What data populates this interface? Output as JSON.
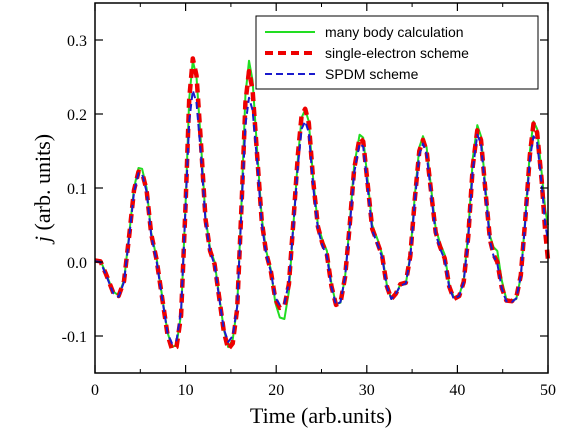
{
  "chart_data": {
    "type": "line",
    "xlabel": "Time (arb.units)",
    "ylabel_italic": "j",
    "ylabel_rest": " (arb. units)",
    "xlim": [
      0,
      50
    ],
    "ylim": [
      -0.15,
      0.35
    ],
    "xticks": [
      0,
      10,
      20,
      30,
      40,
      50
    ],
    "xtick_labels": [
      "0",
      "10",
      "20",
      "30",
      "40",
      "50"
    ],
    "yticks": [
      -0.1,
      0.0,
      0.1,
      0.2,
      0.3
    ],
    "ytick_labels": [
      "-0.1",
      "0.0",
      "0.1",
      "0.2",
      "0.3"
    ],
    "grid": false,
    "legend_position": "top-right",
    "series": [
      {
        "name": "many body calculation",
        "color": "#22dd22",
        "style": "solid",
        "points": [
          [
            0,
            0.003
          ],
          [
            0.6,
            0.002
          ],
          [
            1.2,
            -0.015
          ],
          [
            2.0,
            -0.04
          ],
          [
            2.6,
            -0.045
          ],
          [
            3.2,
            -0.025
          ],
          [
            3.8,
            0.04
          ],
          [
            4.3,
            0.1
          ],
          [
            4.8,
            0.127
          ],
          [
            5.2,
            0.126
          ],
          [
            5.7,
            0.1
          ],
          [
            6.2,
            0.04
          ],
          [
            6.8,
            0.005
          ],
          [
            7.4,
            -0.045
          ],
          [
            8.0,
            -0.095
          ],
          [
            8.5,
            -0.115
          ],
          [
            9.0,
            -0.112
          ],
          [
            9.5,
            -0.07
          ],
          [
            10.0,
            0.08
          ],
          [
            10.4,
            0.22
          ],
          [
            10.8,
            0.272
          ],
          [
            11.2,
            0.25
          ],
          [
            11.7,
            0.16
          ],
          [
            12.2,
            0.06
          ],
          [
            12.7,
            0.018
          ],
          [
            13.2,
            0.0
          ],
          [
            13.7,
            -0.045
          ],
          [
            14.2,
            -0.09
          ],
          [
            14.7,
            -0.115
          ],
          [
            15.2,
            -0.105
          ],
          [
            15.7,
            -0.06
          ],
          [
            16.2,
            0.09
          ],
          [
            16.6,
            0.225
          ],
          [
            17.0,
            0.272
          ],
          [
            17.4,
            0.245
          ],
          [
            17.9,
            0.15
          ],
          [
            18.4,
            0.06
          ],
          [
            18.9,
            0.015
          ],
          [
            19.4,
            -0.01
          ],
          [
            19.9,
            -0.055
          ],
          [
            20.4,
            -0.075
          ],
          [
            20.9,
            -0.077
          ],
          [
            21.4,
            -0.04
          ],
          [
            21.9,
            0.05
          ],
          [
            22.4,
            0.14
          ],
          [
            22.8,
            0.195
          ],
          [
            23.2,
            0.206
          ],
          [
            23.6,
            0.19
          ],
          [
            24.1,
            0.11
          ],
          [
            24.6,
            0.05
          ],
          [
            25.1,
            0.03
          ],
          [
            25.6,
            0.015
          ],
          [
            26.1,
            -0.03
          ],
          [
            26.6,
            -0.057
          ],
          [
            27.1,
            -0.055
          ],
          [
            27.6,
            -0.02
          ],
          [
            28.1,
            0.05
          ],
          [
            28.6,
            0.13
          ],
          [
            29.2,
            0.172
          ],
          [
            29.6,
            0.168
          ],
          [
            30.1,
            0.11
          ],
          [
            30.6,
            0.05
          ],
          [
            31.2,
            0.03
          ],
          [
            31.7,
            0.01
          ],
          [
            32.2,
            -0.03
          ],
          [
            32.7,
            -0.05
          ],
          [
            33.2,
            -0.045
          ],
          [
            33.7,
            -0.03
          ],
          [
            34.3,
            -0.03
          ],
          [
            34.8,
            0.01
          ],
          [
            35.3,
            0.09
          ],
          [
            35.8,
            0.155
          ],
          [
            36.2,
            0.17
          ],
          [
            36.6,
            0.155
          ],
          [
            37.1,
            0.1
          ],
          [
            37.6,
            0.045
          ],
          [
            38.1,
            0.025
          ],
          [
            38.6,
            0.01
          ],
          [
            39.1,
            -0.03
          ],
          [
            39.6,
            -0.048
          ],
          [
            40.2,
            -0.045
          ],
          [
            40.7,
            -0.025
          ],
          [
            41.2,
            0.04
          ],
          [
            41.7,
            0.14
          ],
          [
            42.2,
            0.185
          ],
          [
            42.6,
            0.17
          ],
          [
            43.1,
            0.1
          ],
          [
            43.6,
            0.035
          ],
          [
            44.0,
            0.02
          ],
          [
            44.4,
            0.015
          ],
          [
            44.9,
            -0.025
          ],
          [
            45.4,
            -0.05
          ],
          [
            46.0,
            -0.052
          ],
          [
            46.5,
            -0.05
          ],
          [
            47.0,
            -0.02
          ],
          [
            47.5,
            0.06
          ],
          [
            48.0,
            0.15
          ],
          [
            48.4,
            0.19
          ],
          [
            48.8,
            0.18
          ],
          [
            49.3,
            0.12
          ],
          [
            49.7,
            0.07
          ],
          [
            50.0,
            0.05
          ]
        ]
      },
      {
        "name": "single-electron scheme",
        "color": "#ee0000",
        "style": "dashed",
        "points": [
          [
            0,
            0.002
          ],
          [
            0.6,
            0.001
          ],
          [
            1.2,
            -0.016
          ],
          [
            2.0,
            -0.041
          ],
          [
            2.6,
            -0.046
          ],
          [
            3.2,
            -0.026
          ],
          [
            3.8,
            0.038
          ],
          [
            4.3,
            0.097
          ],
          [
            4.8,
            0.122
          ],
          [
            5.2,
            0.121
          ],
          [
            5.7,
            0.097
          ],
          [
            6.2,
            0.038
          ],
          [
            6.8,
            0.003
          ],
          [
            7.4,
            -0.047
          ],
          [
            8.0,
            -0.098
          ],
          [
            8.5,
            -0.118
          ],
          [
            9.0,
            -0.115
          ],
          [
            9.5,
            -0.072
          ],
          [
            10.0,
            0.078
          ],
          [
            10.4,
            0.22
          ],
          [
            10.8,
            0.275
          ],
          [
            11.2,
            0.252
          ],
          [
            11.7,
            0.16
          ],
          [
            12.2,
            0.058
          ],
          [
            12.7,
            0.015
          ],
          [
            13.2,
            -0.003
          ],
          [
            13.7,
            -0.047
          ],
          [
            14.2,
            -0.093
          ],
          [
            14.7,
            -0.118
          ],
          [
            15.2,
            -0.11
          ],
          [
            15.7,
            -0.063
          ],
          [
            16.2,
            0.085
          ],
          [
            16.6,
            0.215
          ],
          [
            17.0,
            0.258
          ],
          [
            17.4,
            0.232
          ],
          [
            17.9,
            0.143
          ],
          [
            18.4,
            0.056
          ],
          [
            18.9,
            0.012
          ],
          [
            19.4,
            -0.012
          ],
          [
            19.9,
            -0.05
          ],
          [
            20.4,
            -0.062
          ],
          [
            20.9,
            -0.06
          ],
          [
            21.4,
            -0.03
          ],
          [
            21.9,
            0.055
          ],
          [
            22.4,
            0.145
          ],
          [
            22.8,
            0.198
          ],
          [
            23.2,
            0.207
          ],
          [
            23.6,
            0.188
          ],
          [
            24.1,
            0.108
          ],
          [
            24.6,
            0.048
          ],
          [
            25.1,
            0.025
          ],
          [
            25.6,
            0.01
          ],
          [
            26.1,
            -0.033
          ],
          [
            26.6,
            -0.058
          ],
          [
            27.1,
            -0.055
          ],
          [
            27.6,
            -0.02
          ],
          [
            28.1,
            0.048
          ],
          [
            28.6,
            0.125
          ],
          [
            29.2,
            0.168
          ],
          [
            29.6,
            0.163
          ],
          [
            30.1,
            0.105
          ],
          [
            30.6,
            0.045
          ],
          [
            31.2,
            0.025
          ],
          [
            31.7,
            0.008
          ],
          [
            32.2,
            -0.032
          ],
          [
            32.7,
            -0.05
          ],
          [
            33.2,
            -0.043
          ],
          [
            33.7,
            -0.03
          ],
          [
            34.3,
            -0.028
          ],
          [
            34.8,
            0.008
          ],
          [
            35.3,
            0.085
          ],
          [
            35.8,
            0.15
          ],
          [
            36.2,
            0.165
          ],
          [
            36.6,
            0.15
          ],
          [
            37.1,
            0.095
          ],
          [
            37.6,
            0.04
          ],
          [
            38.1,
            0.02
          ],
          [
            38.6,
            0.005
          ],
          [
            39.1,
            -0.033
          ],
          [
            39.6,
            -0.05
          ],
          [
            40.2,
            -0.046
          ],
          [
            40.7,
            -0.027
          ],
          [
            41.2,
            0.035
          ],
          [
            41.7,
            0.13
          ],
          [
            42.2,
            0.178
          ],
          [
            42.6,
            0.165
          ],
          [
            43.1,
            0.095
          ],
          [
            43.6,
            0.03
          ],
          [
            44.0,
            0.01
          ],
          [
            44.4,
            0.0
          ],
          [
            44.9,
            -0.035
          ],
          [
            45.4,
            -0.052
          ],
          [
            46.0,
            -0.053
          ],
          [
            46.5,
            -0.048
          ],
          [
            47.0,
            -0.018
          ],
          [
            47.5,
            0.058
          ],
          [
            48.0,
            0.145
          ],
          [
            48.4,
            0.187
          ],
          [
            48.8,
            0.175
          ],
          [
            49.3,
            0.11
          ],
          [
            49.7,
            0.04
          ],
          [
            50.0,
            0.003
          ]
        ]
      },
      {
        "name": "SPDM scheme",
        "color": "#1a1acc",
        "style": "dashed",
        "points": [
          [
            0,
            0.001
          ],
          [
            0.6,
            0.0
          ],
          [
            1.2,
            -0.017
          ],
          [
            2.0,
            -0.042
          ],
          [
            2.6,
            -0.047
          ],
          [
            3.2,
            -0.027
          ],
          [
            3.8,
            0.036
          ],
          [
            4.3,
            0.094
          ],
          [
            4.8,
            0.12
          ],
          [
            5.2,
            0.119
          ],
          [
            5.7,
            0.095
          ],
          [
            6.2,
            0.036
          ],
          [
            6.8,
            0.001
          ],
          [
            7.4,
            -0.048
          ],
          [
            8.0,
            -0.096
          ],
          [
            8.5,
            -0.11
          ],
          [
            9.0,
            -0.106
          ],
          [
            9.5,
            -0.065
          ],
          [
            10.0,
            0.075
          ],
          [
            10.4,
            0.19
          ],
          [
            10.8,
            0.232
          ],
          [
            11.2,
            0.215
          ],
          [
            11.7,
            0.145
          ],
          [
            12.2,
            0.055
          ],
          [
            12.7,
            0.014
          ],
          [
            13.2,
            -0.004
          ],
          [
            13.7,
            -0.048
          ],
          [
            14.2,
            -0.09
          ],
          [
            14.7,
            -0.108
          ],
          [
            15.2,
            -0.1
          ],
          [
            15.7,
            -0.06
          ],
          [
            16.2,
            0.08
          ],
          [
            16.6,
            0.185
          ],
          [
            17.0,
            0.222
          ],
          [
            17.4,
            0.205
          ],
          [
            17.9,
            0.135
          ],
          [
            18.4,
            0.052
          ],
          [
            18.9,
            0.01
          ],
          [
            19.4,
            -0.013
          ],
          [
            19.9,
            -0.048
          ],
          [
            20.4,
            -0.058
          ],
          [
            20.9,
            -0.056
          ],
          [
            21.4,
            -0.028
          ],
          [
            21.9,
            0.05
          ],
          [
            22.4,
            0.13
          ],
          [
            22.8,
            0.18
          ],
          [
            23.2,
            0.19
          ],
          [
            23.6,
            0.175
          ],
          [
            24.1,
            0.1
          ],
          [
            24.6,
            0.045
          ],
          [
            25.1,
            0.022
          ],
          [
            25.6,
            0.008
          ],
          [
            26.1,
            -0.034
          ],
          [
            26.6,
            -0.058
          ],
          [
            27.1,
            -0.054
          ],
          [
            27.6,
            -0.02
          ],
          [
            28.1,
            0.045
          ],
          [
            28.6,
            0.12
          ],
          [
            29.2,
            0.16
          ],
          [
            29.6,
            0.156
          ],
          [
            30.1,
            0.1
          ],
          [
            30.6,
            0.043
          ],
          [
            31.2,
            0.023
          ],
          [
            31.7,
            0.006
          ],
          [
            32.2,
            -0.033
          ],
          [
            32.7,
            -0.05
          ],
          [
            33.2,
            -0.043
          ],
          [
            33.7,
            -0.032
          ],
          [
            34.3,
            -0.029
          ],
          [
            34.8,
            0.006
          ],
          [
            35.3,
            0.082
          ],
          [
            35.8,
            0.145
          ],
          [
            36.2,
            0.16
          ],
          [
            36.6,
            0.146
          ],
          [
            37.1,
            0.092
          ],
          [
            37.6,
            0.038
          ],
          [
            38.1,
            0.018
          ],
          [
            38.6,
            0.003
          ],
          [
            39.1,
            -0.034
          ],
          [
            39.6,
            -0.05
          ],
          [
            40.2,
            -0.046
          ],
          [
            40.7,
            -0.027
          ],
          [
            41.2,
            0.033
          ],
          [
            41.7,
            0.125
          ],
          [
            42.2,
            0.172
          ],
          [
            42.6,
            0.16
          ],
          [
            43.1,
            0.092
          ],
          [
            43.6,
            0.028
          ],
          [
            44.0,
            0.008
          ],
          [
            44.4,
            -0.002
          ],
          [
            44.9,
            -0.036
          ],
          [
            45.4,
            -0.053
          ],
          [
            46.0,
            -0.054
          ],
          [
            46.5,
            -0.049
          ],
          [
            47.0,
            -0.019
          ],
          [
            47.5,
            0.055
          ],
          [
            48.0,
            0.14
          ],
          [
            48.4,
            0.17
          ],
          [
            48.8,
            0.162
          ],
          [
            49.3,
            0.105
          ],
          [
            49.7,
            0.05
          ],
          [
            50.0,
            0.03
          ]
        ]
      }
    ]
  }
}
